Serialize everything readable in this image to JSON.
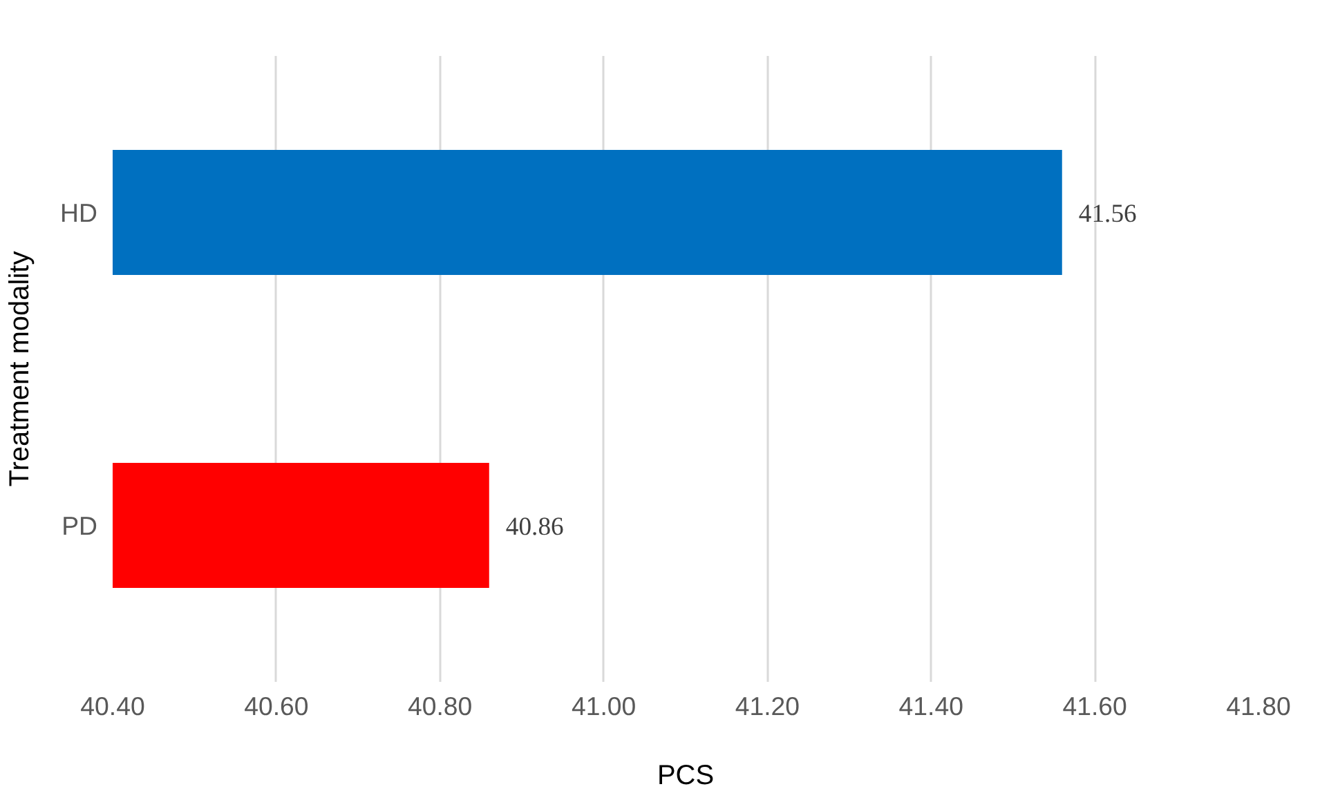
{
  "chart_data": {
    "type": "bar",
    "orientation": "horizontal",
    "categories": [
      "HD",
      "PD"
    ],
    "values": [
      41.56,
      40.86
    ],
    "colors": [
      "#0070c0",
      "#ff0000"
    ],
    "xlim": [
      40.4,
      41.8
    ],
    "xticks": [
      {
        "value": 40.4,
        "label": "40.40"
      },
      {
        "value": 40.6,
        "label": "40.60"
      },
      {
        "value": 40.8,
        "label": "40.80"
      },
      {
        "value": 41.0,
        "label": "41.00"
      },
      {
        "value": 41.2,
        "label": "41.20"
      },
      {
        "value": 41.4,
        "label": "41.40"
      },
      {
        "value": 41.6,
        "label": "41.60"
      },
      {
        "value": 41.8,
        "label": "41.80"
      }
    ],
    "xlabel": "PCS",
    "ylabel": "Treatment modality",
    "grid": "x",
    "data_labels": true
  }
}
